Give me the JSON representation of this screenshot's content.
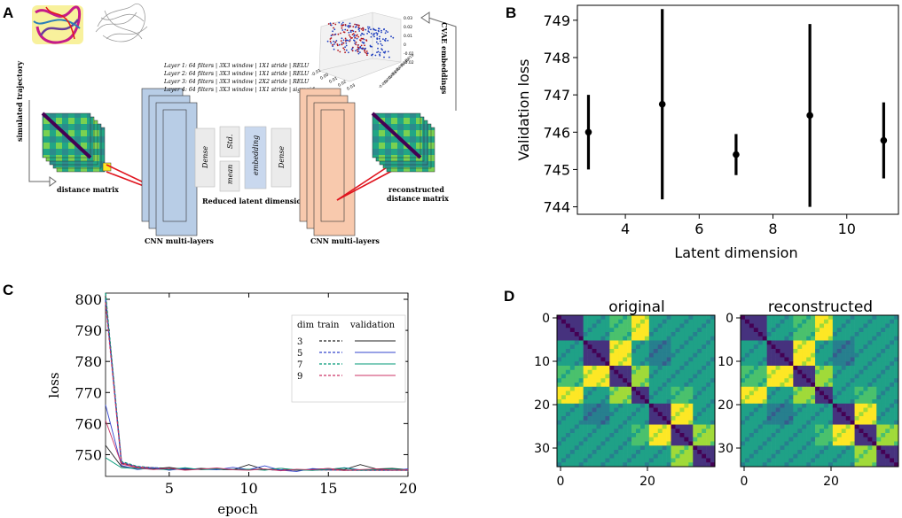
{
  "panel_labels": {
    "a": "A",
    "b": "B",
    "c": "C",
    "d": "D"
  },
  "panel_a": {
    "simulated_trajectory": "simulated trajectory",
    "distance_matrix": "distance matrix",
    "layer_specs": [
      "Layer 1: 64 filters | 3X3 window | 1X1 stride | RELU",
      "Layer 2: 64 filters | 3X3 window | 1X1 stride | RELU",
      "Layer 3: 64 filters | 3X3 window | 2X2 stride | RELU",
      "Layer 4: 64 filters | 3X3 window | 1X1 stride | sigmoid"
    ],
    "latent_boxes": [
      "Dense",
      "Std.",
      "mean",
      "embedding",
      "Dense"
    ],
    "reduced_latent": "Reduced latent dimension",
    "cnn_left": "CNN multi-layers",
    "cnn_right": "CNN multi-layers",
    "reconstructed_line1": "reconstructed",
    "reconstructed_line2": "distance matrix",
    "cvae_embeddings": "CVAE embeddings",
    "scatter_ticks_z": [
      "0.03",
      "0.02",
      "0.01",
      "0",
      "-0.01",
      "-0.02"
    ],
    "scatter_ticks_x": [
      "-0.01",
      "0.00",
      "0.01",
      "0.02",
      "0.03"
    ],
    "scatter_ticks_y": [
      "-0.015",
      "-0.010",
      "-0.005",
      "0.000",
      "0.005",
      "0.010",
      "0.015"
    ]
  },
  "colors": {
    "blue_layer": "#b8cde6",
    "orange_layer": "#f8c9ad",
    "red_line": "#e0141e",
    "viridis_dark": "#440154",
    "viridis_green": "#21a685",
    "viridis_yellow": "#fde725"
  },
  "panel_d": {
    "titles": [
      "original",
      "reconstructed"
    ],
    "y_ticks": [
      "0",
      "10",
      "20",
      "30"
    ],
    "x_ticks": [
      "0",
      "20"
    ]
  },
  "chart_data": [
    {
      "id": "B",
      "type": "errorbar",
      "title": "",
      "xlabel": "Latent dimension",
      "ylabel": "Validation loss",
      "x": [
        3,
        5,
        7,
        9,
        11
      ],
      "y": [
        746.0,
        746.75,
        745.4,
        746.45,
        745.78
      ],
      "yerr": [
        1.0,
        2.55,
        0.55,
        2.45,
        1.02
      ],
      "xlim": [
        2.7,
        11.4
      ],
      "ylim": [
        743.8,
        749.4
      ],
      "xticks": [
        4,
        6,
        8,
        10
      ],
      "yticks": [
        744,
        745,
        746,
        747,
        748,
        749
      ],
      "color": "#000000"
    },
    {
      "id": "C",
      "type": "line",
      "xlabel": "epoch",
      "ylabel": "loss",
      "xlim": [
        1,
        20
      ],
      "ylim": [
        743,
        802
      ],
      "xticks": [
        5,
        10,
        15,
        20
      ],
      "yticks": [
        750,
        760,
        770,
        780,
        790,
        800
      ],
      "legend": {
        "header": [
          "dim",
          "train",
          "validation"
        ],
        "dims": [
          "3",
          "5",
          "7",
          "9"
        ],
        "position": "top-right"
      },
      "epochs": [
        1,
        2,
        3,
        4,
        5,
        6,
        7,
        8,
        9,
        10,
        11,
        12,
        13,
        14,
        15,
        16,
        17,
        18,
        19,
        20
      ],
      "series": [
        {
          "name": "3",
          "split": "train",
          "color": "#222222",
          "dashed": true,
          "values": [
            801,
            747.2,
            746.0,
            745.7,
            745.5,
            745.4,
            745.3,
            745.3,
            745.2,
            745.2,
            745.2,
            745.1,
            745.1,
            745.1,
            745.1,
            745.0,
            745.0,
            745.0,
            745.0,
            745.0
          ]
        },
        {
          "name": "5",
          "split": "train",
          "color": "#3344cc",
          "dashed": true,
          "values": [
            800,
            747.5,
            746.1,
            745.7,
            745.5,
            745.4,
            745.3,
            745.3,
            745.2,
            745.2,
            745.2,
            745.1,
            745.1,
            745.1,
            745.1,
            745.0,
            745.0,
            745.0,
            745.0,
            745.0
          ]
        },
        {
          "name": "7",
          "split": "train",
          "color": "#009977",
          "dashed": true,
          "values": [
            802,
            747.8,
            746.2,
            745.8,
            745.6,
            745.4,
            745.3,
            745.3,
            745.2,
            745.2,
            745.2,
            745.1,
            745.1,
            745.1,
            745.1,
            745.0,
            745.0,
            745.0,
            745.0,
            745.0
          ]
        },
        {
          "name": "9",
          "split": "train",
          "color": "#cc3366",
          "dashed": true,
          "values": [
            799,
            747.4,
            746.0,
            745.7,
            745.5,
            745.4,
            745.3,
            745.3,
            745.2,
            745.2,
            745.2,
            745.1,
            745.1,
            745.1,
            745.1,
            745.0,
            745.0,
            745.0,
            745.0,
            745.0
          ]
        },
        {
          "name": "3",
          "split": "validation",
          "color": "#222222",
          "dashed": false,
          "values": [
            753,
            746.2,
            745.6,
            745.4,
            745.9,
            745.2,
            745.6,
            745.3,
            745.1,
            746.8,
            745.2,
            745.6,
            745.0,
            745.3,
            745.5,
            745.2,
            746.8,
            745.4,
            745.6,
            745.2
          ]
        },
        {
          "name": "5",
          "split": "validation",
          "color": "#3344cc",
          "dashed": false,
          "values": [
            766,
            746.5,
            745.2,
            745.8,
            745.0,
            745.6,
            745.3,
            745.1,
            745.9,
            745.2,
            746.4,
            745.0,
            744.6,
            745.5,
            745.2,
            745.8,
            745.1,
            745.3,
            745.0,
            745.4
          ]
        },
        {
          "name": "7",
          "split": "validation",
          "color": "#009977",
          "dashed": false,
          "values": [
            749,
            745.8,
            745.5,
            745.3,
            745.2,
            745.8,
            745.1,
            745.4,
            745.2,
            745.3,
            745.0,
            745.6,
            745.1,
            744.9,
            745.3,
            745.7,
            745.0,
            745.2,
            745.4,
            745.1
          ]
        },
        {
          "name": "9",
          "split": "validation",
          "color": "#cc3366",
          "dashed": false,
          "values": [
            761,
            747.0,
            745.8,
            745.2,
            745.6,
            745.0,
            745.3,
            745.7,
            745.1,
            745.0,
            745.4,
            744.8,
            745.3,
            745.1,
            745.6,
            744.9,
            745.2,
            745.4,
            745.0,
            745.1
          ]
        }
      ]
    }
  ]
}
